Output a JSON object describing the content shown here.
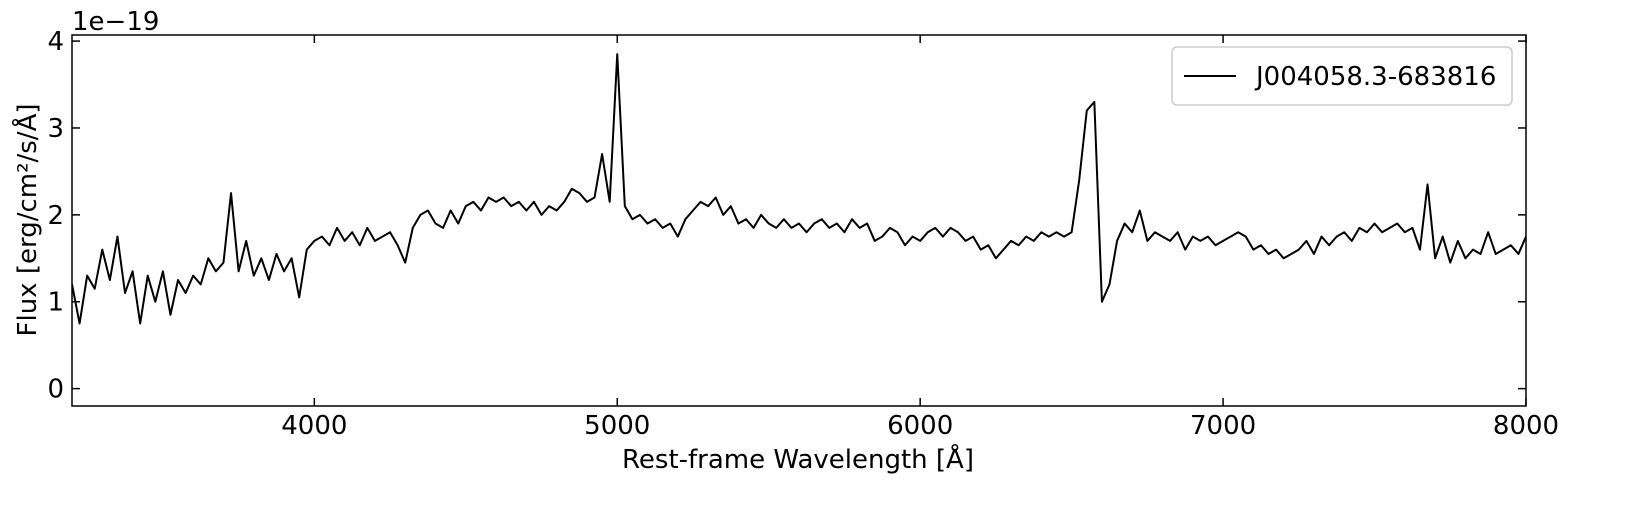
{
  "chart_data": {
    "type": "line",
    "xlabel": "Rest-frame Wavelength [Å]",
    "ylabel": "Flux [erg/cm²/s/Å]",
    "y_offset_label": "1e−19",
    "xlim": [
      3200,
      8000
    ],
    "ylim": [
      -0.2,
      4.07
    ],
    "xticks": [
      4000,
      5000,
      6000,
      7000,
      8000
    ],
    "yticks": [
      0,
      1,
      2,
      3,
      4
    ],
    "legend": "upper right",
    "x": [
      3200,
      3225,
      3250,
      3275,
      3300,
      3325,
      3350,
      3375,
      3400,
      3425,
      3450,
      3475,
      3500,
      3525,
      3550,
      3575,
      3600,
      3625,
      3650,
      3675,
      3700,
      3725,
      3750,
      3775,
      3800,
      3825,
      3850,
      3875,
      3900,
      3925,
      3950,
      3975,
      4000,
      4025,
      4050,
      4075,
      4100,
      4125,
      4150,
      4175,
      4200,
      4225,
      4250,
      4275,
      4300,
      4325,
      4350,
      4375,
      4400,
      4425,
      4450,
      4475,
      4500,
      4525,
      4550,
      4575,
      4600,
      4625,
      4650,
      4675,
      4700,
      4725,
      4750,
      4775,
      4800,
      4825,
      4850,
      4875,
      4900,
      4925,
      4950,
      4975,
      5000,
      5025,
      5050,
      5075,
      5100,
      5125,
      5150,
      5175,
      5200,
      5225,
      5250,
      5275,
      5300,
      5325,
      5350,
      5375,
      5400,
      5425,
      5450,
      5475,
      5500,
      5525,
      5550,
      5575,
      5600,
      5625,
      5650,
      5675,
      5700,
      5725,
      5750,
      5775,
      5800,
      5825,
      5850,
      5875,
      5900,
      5925,
      5950,
      5975,
      6000,
      6025,
      6050,
      6075,
      6100,
      6125,
      6150,
      6175,
      6200,
      6225,
      6250,
      6275,
      6300,
      6325,
      6350,
      6375,
      6400,
      6425,
      6450,
      6475,
      6500,
      6525,
      6550,
      6575,
      6600,
      6625,
      6650,
      6675,
      6700,
      6725,
      6750,
      6775,
      6800,
      6825,
      6850,
      6875,
      6900,
      6925,
      6950,
      6975,
      7000,
      7025,
      7050,
      7075,
      7100,
      7125,
      7150,
      7175,
      7200,
      7225,
      7250,
      7275,
      7300,
      7325,
      7350,
      7375,
      7400,
      7425,
      7450,
      7475,
      7500,
      7525,
      7550,
      7575,
      7600,
      7625,
      7650,
      7675,
      7700,
      7725,
      7750,
      7775,
      7800,
      7825,
      7850,
      7875,
      7900,
      7925,
      7950,
      7975,
      8000
    ],
    "series": [
      {
        "name": "J004058.3-683816",
        "color": "#000000",
        "values": [
          1.2,
          0.75,
          1.3,
          1.15,
          1.6,
          1.25,
          1.75,
          1.1,
          1.35,
          0.75,
          1.3,
          1.0,
          1.35,
          0.85,
          1.25,
          1.1,
          1.3,
          1.2,
          1.5,
          1.35,
          1.45,
          2.25,
          1.35,
          1.7,
          1.3,
          1.5,
          1.25,
          1.55,
          1.35,
          1.5,
          1.05,
          1.6,
          1.7,
          1.75,
          1.65,
          1.85,
          1.7,
          1.8,
          1.65,
          1.85,
          1.7,
          1.75,
          1.8,
          1.65,
          1.45,
          1.85,
          2.0,
          2.05,
          1.9,
          1.85,
          2.05,
          1.9,
          2.1,
          2.15,
          2.05,
          2.2,
          2.15,
          2.2,
          2.1,
          2.15,
          2.05,
          2.15,
          2.0,
          2.1,
          2.05,
          2.15,
          2.3,
          2.25,
          2.15,
          2.2,
          2.7,
          2.15,
          3.85,
          2.1,
          1.95,
          2.0,
          1.9,
          1.95,
          1.85,
          1.9,
          1.75,
          1.95,
          2.05,
          2.15,
          2.1,
          2.2,
          2.0,
          2.1,
          1.9,
          1.95,
          1.85,
          2.0,
          1.9,
          1.85,
          1.95,
          1.85,
          1.9,
          1.8,
          1.9,
          1.95,
          1.85,
          1.9,
          1.8,
          1.95,
          1.85,
          1.9,
          1.7,
          1.75,
          1.85,
          1.8,
          1.65,
          1.75,
          1.7,
          1.8,
          1.85,
          1.75,
          1.85,
          1.8,
          1.7,
          1.75,
          1.6,
          1.65,
          1.5,
          1.6,
          1.7,
          1.65,
          1.75,
          1.7,
          1.8,
          1.75,
          1.8,
          1.75,
          1.8,
          2.4,
          3.2,
          3.3,
          1.0,
          1.2,
          1.7,
          1.9,
          1.8,
          2.05,
          1.7,
          1.8,
          1.75,
          1.7,
          1.8,
          1.6,
          1.75,
          1.7,
          1.75,
          1.65,
          1.7,
          1.75,
          1.8,
          1.75,
          1.6,
          1.65,
          1.55,
          1.6,
          1.5,
          1.55,
          1.6,
          1.7,
          1.55,
          1.75,
          1.65,
          1.75,
          1.8,
          1.7,
          1.85,
          1.8,
          1.9,
          1.8,
          1.85,
          1.9,
          1.8,
          1.85,
          1.6,
          2.35,
          1.5,
          1.75,
          1.45,
          1.7,
          1.5,
          1.6,
          1.55,
          1.8,
          1.55,
          1.6,
          1.65,
          1.55,
          1.75
        ]
      }
    ]
  }
}
